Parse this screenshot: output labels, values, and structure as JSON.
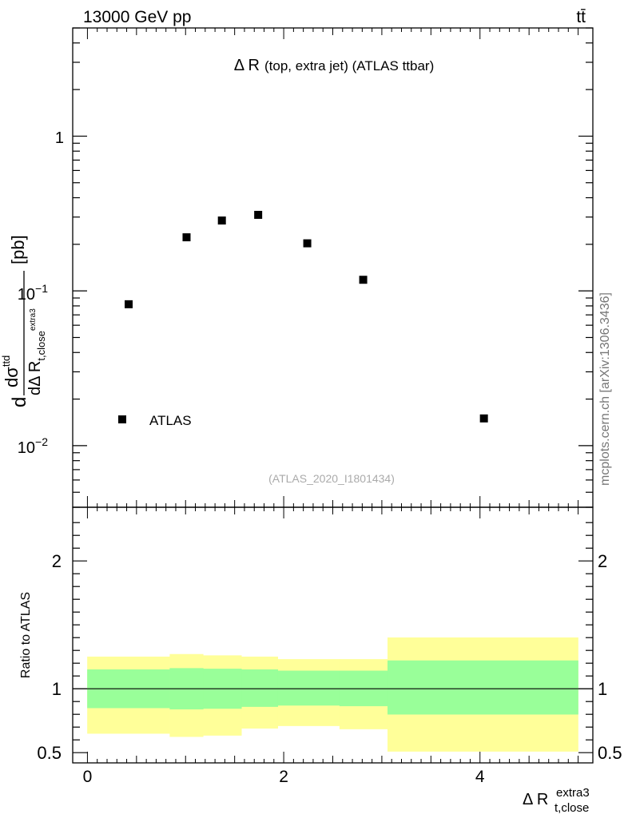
{
  "header": {
    "energy_label": "13000 GeV pp",
    "process_label": "tt̄"
  },
  "side_label": "mcplots.cern.ch [arXiv:1306.3436]",
  "chart_data": [
    {
      "type": "scatter",
      "title": "Δ R (top, extra jet) (ATLAS ttbar)",
      "title_main": "Δ R",
      "title_sub": "(top, extra jet) (ATLAS ttbar)",
      "watermark": "(ATLAS_2020_I1801434)",
      "yscale": "log",
      "ylim": [
        0.004,
        5
      ],
      "xlim": [
        -0.15,
        5.15
      ],
      "ylabel": {
        "prefix": "d",
        "numerator": "dσ",
        "numerator_sup": "ttd",
        "denominator": "dΔ R",
        "denominator_sub": "t,close",
        "denominator_subsup": "extra3",
        "unit": "[pb]"
      },
      "ytick_labels": [
        {
          "base": "10",
          "exp": "−2",
          "value": 0.01
        },
        {
          "base": "10",
          "exp": "−1",
          "value": 0.1
        },
        {
          "base": "1",
          "exp": "",
          "value": 1
        }
      ],
      "legend": {
        "label": "ATLAS",
        "position": "bottom-left"
      },
      "series": [
        {
          "name": "ATLAS",
          "marker": "square",
          "points": [
            {
              "x": 0.42,
              "y": 0.082
            },
            {
              "x": 1.01,
              "y": 0.222
            },
            {
              "x": 1.37,
              "y": 0.285
            },
            {
              "x": 1.74,
              "y": 0.31
            },
            {
              "x": 2.24,
              "y": 0.203
            },
            {
              "x": 2.81,
              "y": 0.118
            },
            {
              "x": 4.04,
              "y": 0.015
            }
          ]
        }
      ]
    },
    {
      "type": "area",
      "ylabel": "Ratio to ATLAS",
      "xlabel": {
        "main": "Δ R",
        "sub": "t,close",
        "sup": "extra3"
      },
      "xlim": [
        -0.15,
        5.15
      ],
      "ylim": [
        0.42,
        2.42
      ],
      "xtick_labels": [
        "0",
        "2",
        "4"
      ],
      "xtick_values": [
        0,
        2,
        4
      ],
      "ytick_labels": [
        "0.5",
        "1",
        "2"
      ],
      "ytick_values": [
        0.5,
        1,
        2
      ],
      "reference_line": 1,
      "bands": [
        {
          "name": "total uncertainty",
          "color": "#ffff99",
          "bins": [
            {
              "x0": 0.0,
              "x1": 0.84,
              "low": 0.65,
              "high": 1.25
            },
            {
              "x0": 0.84,
              "x1": 1.18,
              "low": 0.625,
              "high": 1.27
            },
            {
              "x0": 1.18,
              "x1": 1.57,
              "low": 0.635,
              "high": 1.26
            },
            {
              "x0": 1.57,
              "x1": 1.94,
              "low": 0.69,
              "high": 1.25
            },
            {
              "x0": 1.94,
              "x1": 2.57,
              "low": 0.71,
              "high": 1.23
            },
            {
              "x0": 2.57,
              "x1": 3.06,
              "low": 0.685,
              "high": 1.23
            },
            {
              "x0": 3.06,
              "x1": 5.0,
              "low": 0.51,
              "high": 1.4
            }
          ]
        },
        {
          "name": "statistical uncertainty",
          "color": "#99ff99",
          "bins": [
            {
              "x0": 0.0,
              "x1": 0.84,
              "low": 0.85,
              "high": 1.15
            },
            {
              "x0": 0.84,
              "x1": 1.18,
              "low": 0.84,
              "high": 1.16
            },
            {
              "x0": 1.18,
              "x1": 1.57,
              "low": 0.845,
              "high": 1.155
            },
            {
              "x0": 1.57,
              "x1": 1.94,
              "low": 0.86,
              "high": 1.15
            },
            {
              "x0": 1.94,
              "x1": 2.57,
              "low": 0.87,
              "high": 1.14
            },
            {
              "x0": 2.57,
              "x1": 3.06,
              "low": 0.865,
              "high": 1.14
            },
            {
              "x0": 3.06,
              "x1": 5.0,
              "low": 0.8,
              "high": 1.22
            }
          ]
        }
      ]
    }
  ]
}
